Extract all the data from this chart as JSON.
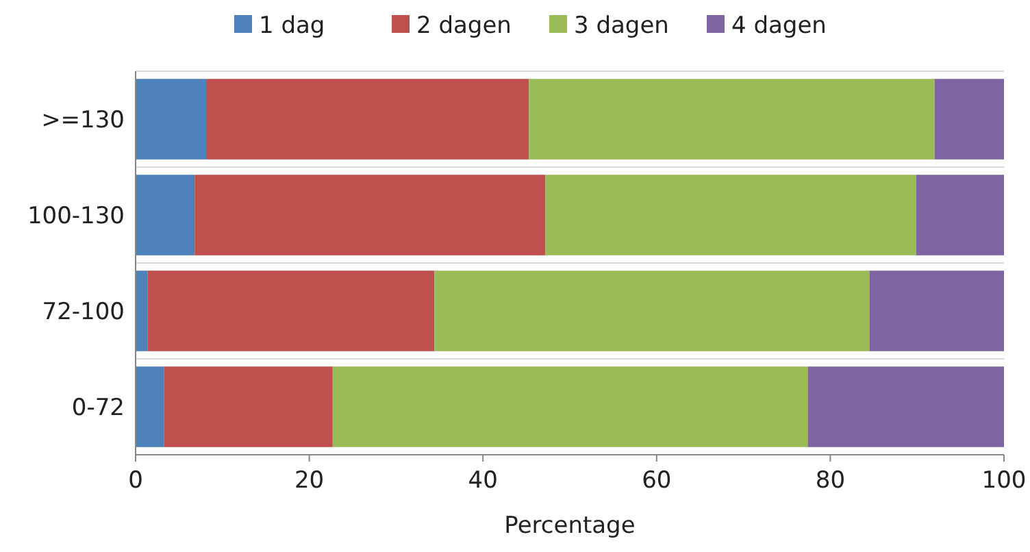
{
  "chart_data": {
    "type": "bar",
    "orientation": "horizontal",
    "stacked": true,
    "xlabel": "Percentage",
    "categories": [
      ">=130",
      "100-130",
      "72-100",
      "0-72"
    ],
    "series": [
      {
        "name": "1 dag",
        "color": "#4f81bd",
        "values": [
          8.2,
          6.8,
          1.4,
          3.3
        ]
      },
      {
        "name": "2 dagen",
        "color": "#c0504d",
        "values": [
          37.1,
          40.4,
          33.0,
          19.4
        ]
      },
      {
        "name": "3 dagen",
        "color": "#9bbb59",
        "values": [
          46.7,
          42.7,
          50.1,
          54.7
        ]
      },
      {
        "name": "4 dagen",
        "color": "#8064a2",
        "values": [
          8.0,
          10.1,
          15.5,
          22.6
        ]
      }
    ],
    "xlim": [
      0,
      100
    ],
    "xticks": [
      0,
      20,
      40,
      60,
      80,
      100
    ],
    "grid": "y",
    "legend": "top"
  }
}
